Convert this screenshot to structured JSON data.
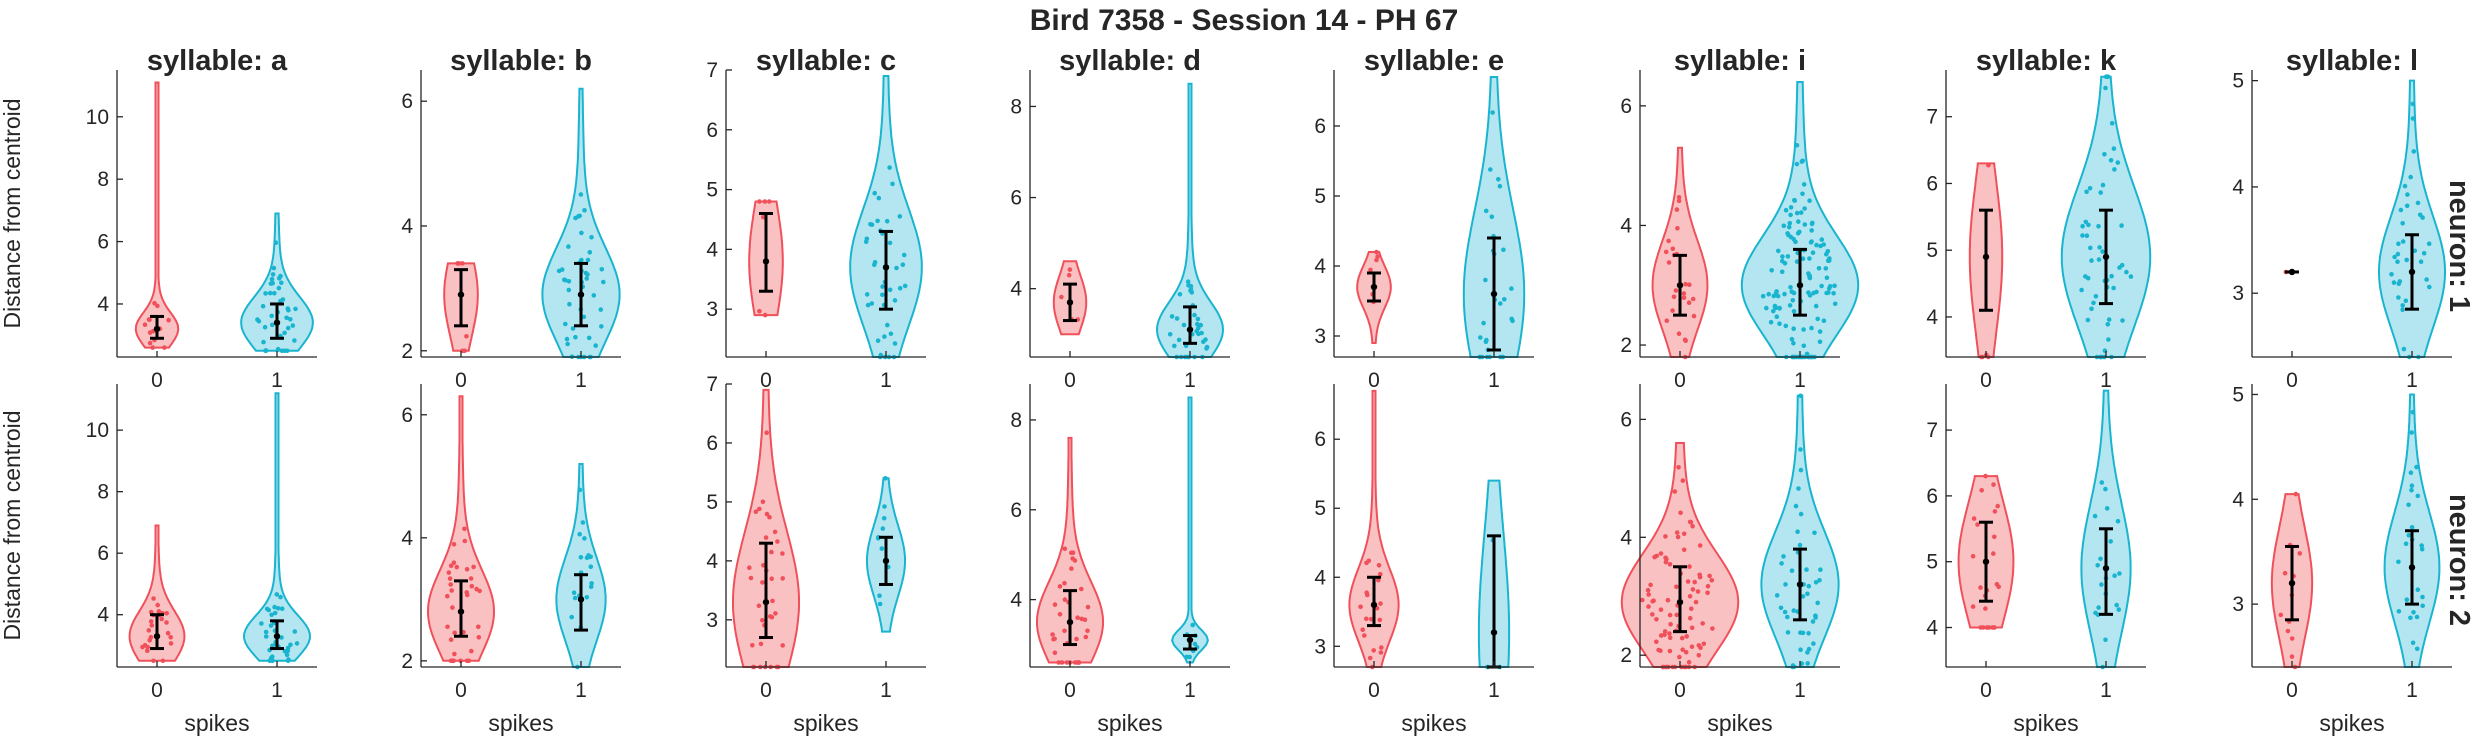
{
  "figure_title": "Bird 7358 - Session 14 - PH 67",
  "row_labels": [
    "neuron: 1",
    "neuron: 2"
  ],
  "ylabel": "Distance from centroid",
  "xlabel": "spikes",
  "colors": {
    "spikes_0": "#f0505a",
    "spikes_0_fill": "#f9b6b9",
    "spikes_1": "#19b4cf",
    "spikes_1_fill": "#a6e2ee",
    "median_bar": "#000000",
    "axis": "#262626"
  },
  "chart_data": [
    {
      "type": "violin",
      "syllable": "a",
      "title": "syllable: a",
      "row": "neuron: 1",
      "x_ticks": [
        "0",
        "1"
      ],
      "ylim": [
        2.3,
        11.5
      ],
      "yticks": [
        4,
        6,
        8,
        10
      ],
      "groups": [
        {
          "spikes": "0",
          "median": 3.2,
          "q1": 2.9,
          "q3": 3.6,
          "range": [
            2.6,
            11.1
          ],
          "n": 14
        },
        {
          "spikes": "1",
          "median": 3.4,
          "q1": 2.9,
          "q3": 4.0,
          "range": [
            2.5,
            6.9
          ],
          "n": 40
        }
      ]
    },
    {
      "type": "violin",
      "syllable": "b",
      "title": "syllable: b",
      "row": "neuron: 1",
      "x_ticks": [
        "0",
        "1"
      ],
      "ylim": [
        1.9,
        6.5
      ],
      "yticks": [
        2,
        4,
        6
      ],
      "groups": [
        {
          "spikes": "0",
          "median": 2.9,
          "q1": 2.4,
          "q3": 3.3,
          "range": [
            2.0,
            3.4
          ],
          "n": 6
        },
        {
          "spikes": "1",
          "median": 2.9,
          "q1": 2.4,
          "q3": 3.4,
          "range": [
            1.9,
            6.2
          ],
          "n": 45
        }
      ]
    },
    {
      "type": "violin",
      "syllable": "c",
      "title": "syllable: c",
      "row": "neuron: 1",
      "x_ticks": [
        "0",
        "1"
      ],
      "ylim": [
        2.2,
        7.0
      ],
      "yticks": [
        3,
        4,
        5,
        6,
        7
      ],
      "groups": [
        {
          "spikes": "0",
          "median": 3.8,
          "q1": 3.3,
          "q3": 4.6,
          "range": [
            2.9,
            4.8
          ],
          "n": 6
        },
        {
          "spikes": "1",
          "median": 3.7,
          "q1": 3.0,
          "q3": 4.3,
          "range": [
            2.2,
            6.9
          ],
          "n": 40
        }
      ]
    },
    {
      "type": "violin",
      "syllable": "d",
      "title": "syllable: d",
      "row": "neuron: 1",
      "x_ticks": [
        "0",
        "1"
      ],
      "ylim": [
        2.5,
        8.8
      ],
      "yticks": [
        4,
        6,
        8
      ],
      "groups": [
        {
          "spikes": "0",
          "median": 3.7,
          "q1": 3.3,
          "q3": 4.1,
          "range": [
            3.0,
            4.6
          ],
          "n": 5
        },
        {
          "spikes": "1",
          "median": 3.1,
          "q1": 2.8,
          "q3": 3.6,
          "range": [
            2.5,
            8.5
          ],
          "n": 35
        }
      ]
    },
    {
      "type": "violin",
      "syllable": "e",
      "title": "syllable: e",
      "row": "neuron: 1",
      "x_ticks": [
        "0",
        "1"
      ],
      "ylim": [
        2.7,
        6.8
      ],
      "yticks": [
        3,
        4,
        5,
        6
      ],
      "groups": [
        {
          "spikes": "0",
          "median": 3.7,
          "q1": 3.5,
          "q3": 3.9,
          "range": [
            2.9,
            4.2
          ],
          "n": 6
        },
        {
          "spikes": "1",
          "median": 3.6,
          "q1": 2.8,
          "q3": 4.4,
          "range": [
            2.7,
            6.7
          ],
          "n": 30
        }
      ]
    },
    {
      "type": "violin",
      "syllable": "i",
      "title": "syllable: i",
      "row": "neuron: 1",
      "x_ticks": [
        "0",
        "1"
      ],
      "ylim": [
        1.8,
        6.6
      ],
      "yticks": [
        2,
        4,
        6
      ],
      "groups": [
        {
          "spikes": "0",
          "median": 3.0,
          "q1": 2.5,
          "q3": 3.5,
          "range": [
            1.8,
            5.3
          ],
          "n": 25
        },
        {
          "spikes": "1",
          "median": 3.0,
          "q1": 2.5,
          "q3": 3.6,
          "range": [
            1.8,
            6.4
          ],
          "n": 130
        }
      ]
    },
    {
      "type": "violin",
      "syllable": "k",
      "title": "syllable: k",
      "row": "neuron: 1",
      "x_ticks": [
        "0",
        "1"
      ],
      "ylim": [
        3.4,
        7.7
      ],
      "yticks": [
        4,
        5,
        6,
        7
      ],
      "groups": [
        {
          "spikes": "0",
          "median": 4.9,
          "q1": 4.1,
          "q3": 5.6,
          "range": [
            3.4,
            6.3
          ],
          "n": 5
        },
        {
          "spikes": "1",
          "median": 4.9,
          "q1": 4.2,
          "q3": 5.6,
          "range": [
            3.4,
            7.6
          ],
          "n": 55
        }
      ]
    },
    {
      "type": "violin",
      "syllable": "l",
      "title": "syllable: l",
      "row": "neuron: 1",
      "x_ticks": [
        "0",
        "1"
      ],
      "ylim": [
        2.4,
        5.1
      ],
      "yticks": [
        3,
        4,
        5
      ],
      "groups": [
        {
          "spikes": "0",
          "median": 3.2,
          "q1": 3.2,
          "q3": 3.2,
          "range": [
            3.2,
            3.2
          ],
          "n": 1
        },
        {
          "spikes": "1",
          "median": 3.2,
          "q1": 2.85,
          "q3": 3.55,
          "range": [
            2.4,
            5.0
          ],
          "n": 35
        }
      ]
    },
    {
      "type": "violin",
      "syllable": "a",
      "title": "",
      "row": "neuron: 2",
      "x_ticks": [
        "0",
        "1"
      ],
      "ylim": [
        2.3,
        11.5
      ],
      "yticks": [
        4,
        6,
        8,
        10
      ],
      "groups": [
        {
          "spikes": "0",
          "median": 3.3,
          "q1": 2.9,
          "q3": 4.0,
          "range": [
            2.5,
            6.9
          ],
          "n": 25
        },
        {
          "spikes": "1",
          "median": 3.3,
          "q1": 2.9,
          "q3": 3.8,
          "range": [
            2.5,
            11.2
          ],
          "n": 35
        }
      ]
    },
    {
      "type": "violin",
      "syllable": "b",
      "title": "",
      "row": "neuron: 2",
      "x_ticks": [
        "0",
        "1"
      ],
      "ylim": [
        1.9,
        6.5
      ],
      "yticks": [
        2,
        4,
        6
      ],
      "groups": [
        {
          "spikes": "0",
          "median": 2.8,
          "q1": 2.4,
          "q3": 3.3,
          "range": [
            2.0,
            6.3
          ],
          "n": 35
        },
        {
          "spikes": "1",
          "median": 3.0,
          "q1": 2.5,
          "q3": 3.4,
          "range": [
            1.9,
            5.2
          ],
          "n": 20
        }
      ]
    },
    {
      "type": "violin",
      "syllable": "c",
      "title": "",
      "row": "neuron: 2",
      "x_ticks": [
        "0",
        "1"
      ],
      "ylim": [
        2.2,
        7.0
      ],
      "yticks": [
        3,
        4,
        5,
        6,
        7
      ],
      "groups": [
        {
          "spikes": "0",
          "median": 3.3,
          "q1": 2.7,
          "q3": 4.3,
          "range": [
            2.2,
            6.9
          ],
          "n": 35
        },
        {
          "spikes": "1",
          "median": 4.0,
          "q1": 3.6,
          "q3": 4.4,
          "range": [
            2.8,
            5.4
          ],
          "n": 10
        }
      ]
    },
    {
      "type": "violin",
      "syllable": "d",
      "title": "",
      "row": "neuron: 2",
      "x_ticks": [
        "0",
        "1"
      ],
      "ylim": [
        2.5,
        8.8
      ],
      "yticks": [
        4,
        6,
        8
      ],
      "groups": [
        {
          "spikes": "0",
          "median": 3.5,
          "q1": 3.0,
          "q3": 4.2,
          "range": [
            2.6,
            7.6
          ],
          "n": 35
        },
        {
          "spikes": "1",
          "median": 3.1,
          "q1": 2.9,
          "q3": 3.2,
          "range": [
            2.6,
            8.5
          ],
          "n": 8
        }
      ]
    },
    {
      "type": "violin",
      "syllable": "e",
      "title": "",
      "row": "neuron: 2",
      "x_ticks": [
        "0",
        "1"
      ],
      "ylim": [
        2.7,
        6.8
      ],
      "yticks": [
        3,
        4,
        5,
        6
      ],
      "groups": [
        {
          "spikes": "0",
          "median": 3.6,
          "q1": 3.3,
          "q3": 4.0,
          "range": [
            2.7,
            6.7
          ],
          "n": 20
        },
        {
          "spikes": "1",
          "median": 3.2,
          "q1": 2.7,
          "q3": 4.6,
          "range": [
            2.7,
            5.4
          ],
          "n": 3
        }
      ]
    },
    {
      "type": "violin",
      "syllable": "i",
      "title": "",
      "row": "neuron: 2",
      "x_ticks": [
        "0",
        "1"
      ],
      "ylim": [
        1.8,
        6.6
      ],
      "yticks": [
        2,
        4,
        6
      ],
      "groups": [
        {
          "spikes": "0",
          "median": 2.9,
          "q1": 2.4,
          "q3": 3.5,
          "range": [
            1.8,
            5.6
          ],
          "n": 90
        },
        {
          "spikes": "1",
          "median": 3.2,
          "q1": 2.6,
          "q3": 3.8,
          "range": [
            1.8,
            6.4
          ],
          "n": 45
        }
      ]
    },
    {
      "type": "violin",
      "syllable": "k",
      "title": "",
      "row": "neuron: 2",
      "x_ticks": [
        "0",
        "1"
      ],
      "ylim": [
        3.4,
        7.7
      ],
      "yticks": [
        4,
        5,
        6,
        7
      ],
      "groups": [
        {
          "spikes": "0",
          "median": 5.0,
          "q1": 4.4,
          "q3": 5.6,
          "range": [
            4.0,
            6.3
          ],
          "n": 25
        },
        {
          "spikes": "1",
          "median": 4.9,
          "q1": 4.2,
          "q3": 5.5,
          "range": [
            3.4,
            7.6
          ],
          "n": 20
        }
      ]
    },
    {
      "type": "violin",
      "syllable": "l",
      "title": "",
      "row": "neuron: 2",
      "x_ticks": [
        "0",
        "1"
      ],
      "ylim": [
        2.4,
        5.1
      ],
      "yticks": [
        3,
        4,
        5
      ],
      "groups": [
        {
          "spikes": "0",
          "median": 3.2,
          "q1": 2.85,
          "q3": 3.55,
          "range": [
            2.4,
            4.05
          ],
          "n": 12
        },
        {
          "spikes": "1",
          "median": 3.35,
          "q1": 3.0,
          "q3": 3.7,
          "range": [
            2.4,
            5.0
          ],
          "n": 25
        }
      ]
    }
  ]
}
